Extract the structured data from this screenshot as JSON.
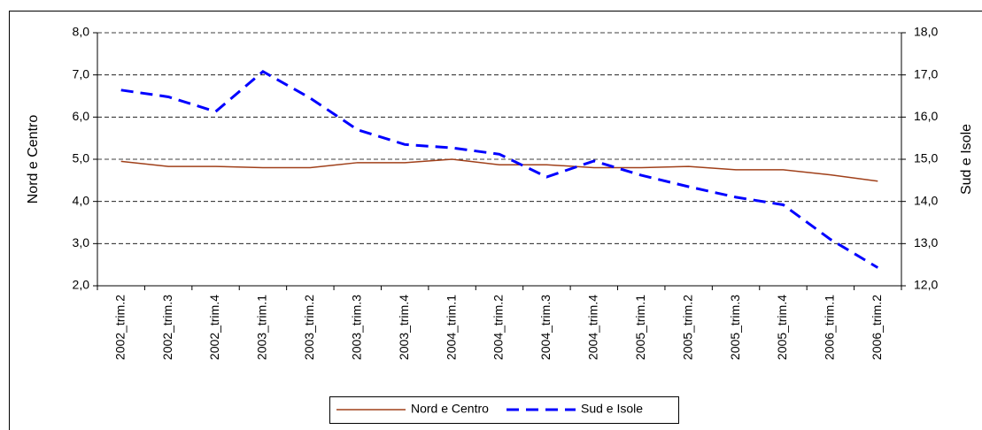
{
  "chart_data": {
    "type": "line",
    "categories": [
      "2002_trim.2",
      "2002_trim.3",
      "2002_trim.4",
      "2003_trim.1",
      "2003_trim.2",
      "2003_trim.3",
      "2003_trim.4",
      "2004_trim.1",
      "2004_trim.2",
      "2004_trim.3",
      "2004_trim.4",
      "2005_trim.1",
      "2005_trim.2",
      "2005_trim.3",
      "2005_trim.4",
      "2006_trim.1",
      "2006_trim.2"
    ],
    "series": [
      {
        "name": "Nord e Centro",
        "color": "#a0401a",
        "linestyle": "solid",
        "axis": "y",
        "values": [
          4.95,
          4.83,
          4.83,
          4.8,
          4.8,
          4.92,
          4.92,
          5.0,
          4.87,
          4.87,
          4.8,
          4.8,
          4.83,
          4.75,
          4.75,
          4.63,
          4.48
        ]
      },
      {
        "name": "Sud e Isole",
        "color": "#0000ff",
        "linestyle": "dashed",
        "axis": "y2",
        "values": [
          16.64,
          16.48,
          16.13,
          17.08,
          16.45,
          15.7,
          15.35,
          15.27,
          15.12,
          14.58,
          14.96,
          14.62,
          14.35,
          14.1,
          13.92,
          13.1,
          12.43
        ]
      }
    ],
    "ylabel": "Nord e Centro",
    "y2label": "Sud e Isole",
    "ylim": [
      2,
      8
    ],
    "yticks": [
      {
        "value": 2,
        "label": "2,0"
      },
      {
        "value": 3,
        "label": "3,0"
      },
      {
        "value": 4,
        "label": "4,0"
      },
      {
        "value": 5,
        "label": "5,0"
      },
      {
        "value": 6,
        "label": "6,0"
      },
      {
        "value": 7,
        "label": "7,0"
      },
      {
        "value": 8,
        "label": "8,0"
      }
    ],
    "y2lim": [
      12,
      18
    ],
    "y2ticks": [
      {
        "value": 12,
        "label": "12,0"
      },
      {
        "value": 13,
        "label": "13,0"
      },
      {
        "value": 14,
        "label": "14,0"
      },
      {
        "value": 15,
        "label": "15,0"
      },
      {
        "value": 16,
        "label": "16,0"
      },
      {
        "value": 17,
        "label": "17,0"
      },
      {
        "value": 18,
        "label": "18,0"
      }
    ],
    "grid": true,
    "legend": "bottom"
  }
}
